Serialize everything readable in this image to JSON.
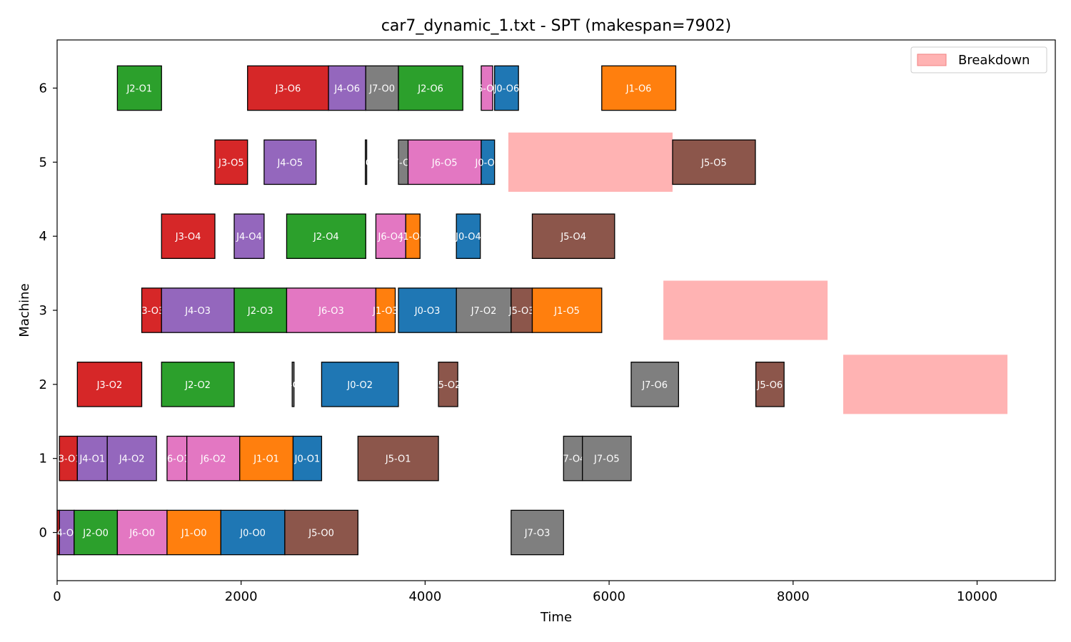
{
  "chart_data": {
    "type": "gantt",
    "title": "car7_dynamic_1.txt - SPT (makespan=7902)",
    "xlabel": "Time",
    "ylabel": "Machine",
    "xlim": [
      0,
      10850
    ],
    "ylim": [
      -0.65,
      6.65
    ],
    "xticks": [
      0,
      2000,
      4000,
      6000,
      8000,
      10000
    ],
    "yticks": [
      0,
      1,
      2,
      3,
      4,
      5,
      6
    ],
    "grid": false,
    "legend": {
      "placement": "top-right",
      "entries": [
        {
          "label": "Breakdown",
          "color": "#ffb3b3"
        }
      ]
    },
    "job_colors": {
      "J0": "#1f77b4",
      "J1": "#ff7f0e",
      "J2": "#2ca02c",
      "J3": "#d62728",
      "J4": "#9467bd",
      "J5": "#8c564b",
      "J6": "#e377c2",
      "J7": "#7f7f7f"
    },
    "operations": [
      {
        "machine": 0,
        "label": "J3-O0",
        "job": "J3",
        "start": 0,
        "end": 25
      },
      {
        "machine": 0,
        "label": "J4-O0",
        "job": "J4",
        "start": 25,
        "end": 185
      },
      {
        "machine": 0,
        "label": "J2-O0",
        "job": "J2",
        "start": 185,
        "end": 655
      },
      {
        "machine": 0,
        "label": "J6-O0",
        "job": "J6",
        "start": 655,
        "end": 1195
      },
      {
        "machine": 0,
        "label": "J1-O0",
        "job": "J1",
        "start": 1195,
        "end": 1780
      },
      {
        "machine": 0,
        "label": "J0-O0",
        "job": "J0",
        "start": 1780,
        "end": 2475
      },
      {
        "machine": 0,
        "label": "J5-O0",
        "job": "J5",
        "start": 2475,
        "end": 3270
      },
      {
        "machine": 0,
        "label": "J7-O3",
        "job": "J7",
        "start": 4935,
        "end": 5505
      },
      {
        "machine": 1,
        "label": "J3-O1",
        "job": "J3",
        "start": 25,
        "end": 220
      },
      {
        "machine": 1,
        "label": "J4-O1",
        "job": "J4",
        "start": 220,
        "end": 545
      },
      {
        "machine": 1,
        "label": "J4-O2",
        "job": "J4",
        "start": 545,
        "end": 1080
      },
      {
        "machine": 1,
        "label": "J6-O1",
        "job": "J6",
        "start": 1195,
        "end": 1410
      },
      {
        "machine": 1,
        "label": "J6-O2",
        "job": "J6",
        "start": 1410,
        "end": 1985
      },
      {
        "machine": 1,
        "label": "J1-O1",
        "job": "J1",
        "start": 1985,
        "end": 2565
      },
      {
        "machine": 1,
        "label": "J0-O1",
        "job": "J0",
        "start": 2565,
        "end": 2875
      },
      {
        "machine": 1,
        "label": "J5-O1",
        "job": "J5",
        "start": 3270,
        "end": 4145
      },
      {
        "machine": 1,
        "label": "J7-O4",
        "job": "J7",
        "start": 5505,
        "end": 5710
      },
      {
        "machine": 1,
        "label": "J7-O5",
        "job": "J7",
        "start": 5710,
        "end": 6240
      },
      {
        "machine": 2,
        "label": "J3-O2",
        "job": "J3",
        "start": 220,
        "end": 920
      },
      {
        "machine": 2,
        "label": "J2-O2",
        "job": "J2",
        "start": 1135,
        "end": 1925
      },
      {
        "machine": 2,
        "label": "J7-O0",
        "job": "J7",
        "start": 2555,
        "end": 2575
      },
      {
        "machine": 2,
        "label": "J0-O2",
        "job": "J0",
        "start": 2875,
        "end": 3710
      },
      {
        "machine": 2,
        "label": "J5-O2",
        "job": "J5",
        "start": 4145,
        "end": 4355
      },
      {
        "machine": 2,
        "label": "J7-O6",
        "job": "J7",
        "start": 6240,
        "end": 6755
      },
      {
        "machine": 2,
        "label": "J5-O6",
        "job": "J5",
        "start": 7595,
        "end": 7902
      },
      {
        "machine": 3,
        "label": "J3-O3",
        "job": "J3",
        "start": 920,
        "end": 1135
      },
      {
        "machine": 3,
        "label": "J4-O3",
        "job": "J4",
        "start": 1135,
        "end": 1925
      },
      {
        "machine": 3,
        "label": "J2-O3",
        "job": "J2",
        "start": 1925,
        "end": 2495
      },
      {
        "machine": 3,
        "label": "J6-O3",
        "job": "J6",
        "start": 2495,
        "end": 3465
      },
      {
        "machine": 3,
        "label": "J1-O3",
        "job": "J1",
        "start": 3465,
        "end": 3675
      },
      {
        "machine": 3,
        "label": "J0-O3",
        "job": "J0",
        "start": 3710,
        "end": 4340
      },
      {
        "machine": 3,
        "label": "J7-O2",
        "job": "J7",
        "start": 4340,
        "end": 4935
      },
      {
        "machine": 3,
        "label": "J5-O3",
        "job": "J5",
        "start": 4935,
        "end": 5165
      },
      {
        "machine": 3,
        "label": "J1-O5",
        "job": "J1",
        "start": 5165,
        "end": 5920
      },
      {
        "machine": 4,
        "label": "J3-O4",
        "job": "J3",
        "start": 1135,
        "end": 1715
      },
      {
        "machine": 4,
        "label": "J4-O4",
        "job": "J4",
        "start": 1925,
        "end": 2250
      },
      {
        "machine": 4,
        "label": "J2-O4",
        "job": "J2",
        "start": 2495,
        "end": 3355
      },
      {
        "machine": 4,
        "label": "J6-O4",
        "job": "J6",
        "start": 3465,
        "end": 3790
      },
      {
        "machine": 4,
        "label": "J1-O4",
        "job": "J1",
        "start": 3790,
        "end": 3945
      },
      {
        "machine": 4,
        "label": "J0-O4",
        "job": "J0",
        "start": 4340,
        "end": 4600
      },
      {
        "machine": 4,
        "label": "J5-O4",
        "job": "J5",
        "start": 5165,
        "end": 6060
      },
      {
        "machine": 5,
        "label": "J3-O5",
        "job": "J3",
        "start": 1715,
        "end": 2070
      },
      {
        "machine": 5,
        "label": "J4-O5",
        "job": "J4",
        "start": 2250,
        "end": 2815
      },
      {
        "machine": 5,
        "label": "J7-O0",
        "job": "J7",
        "start": 3350,
        "end": 3365
      },
      {
        "machine": 5,
        "label": "J7-O1",
        "job": "J7",
        "start": 3710,
        "end": 3815
      },
      {
        "machine": 5,
        "label": "J6-O5",
        "job": "J6",
        "start": 3815,
        "end": 4610
      },
      {
        "machine": 5,
        "label": "J0-O5",
        "job": "J0",
        "start": 4610,
        "end": 4755
      },
      {
        "machine": 5,
        "label": "J5-O5",
        "job": "J5",
        "start": 6690,
        "end": 7590
      },
      {
        "machine": 6,
        "label": "J2-O1",
        "job": "J2",
        "start": 655,
        "end": 1135
      },
      {
        "machine": 6,
        "label": "J3-O6",
        "job": "J3",
        "start": 2070,
        "end": 2950
      },
      {
        "machine": 6,
        "label": "J4-O6",
        "job": "J4",
        "start": 2950,
        "end": 3355
      },
      {
        "machine": 6,
        "label": "J7-O0",
        "job": "J7",
        "start": 3355,
        "end": 3710
      },
      {
        "machine": 6,
        "label": "J2-O6",
        "job": "J2",
        "start": 3710,
        "end": 4410
      },
      {
        "machine": 6,
        "label": "J6-O6",
        "job": "J6",
        "start": 4610,
        "end": 4735
      },
      {
        "machine": 6,
        "label": "J0-O6",
        "job": "J0",
        "start": 4755,
        "end": 5015
      },
      {
        "machine": 6,
        "label": "J1-O6",
        "job": "J1",
        "start": 5920,
        "end": 6725
      }
    ],
    "breakdowns": [
      {
        "machine": 5,
        "start": 4905,
        "end": 6690
      },
      {
        "machine": 3,
        "start": 6590,
        "end": 8375
      },
      {
        "machine": 2,
        "start": 8545,
        "end": 10330
      }
    ]
  }
}
